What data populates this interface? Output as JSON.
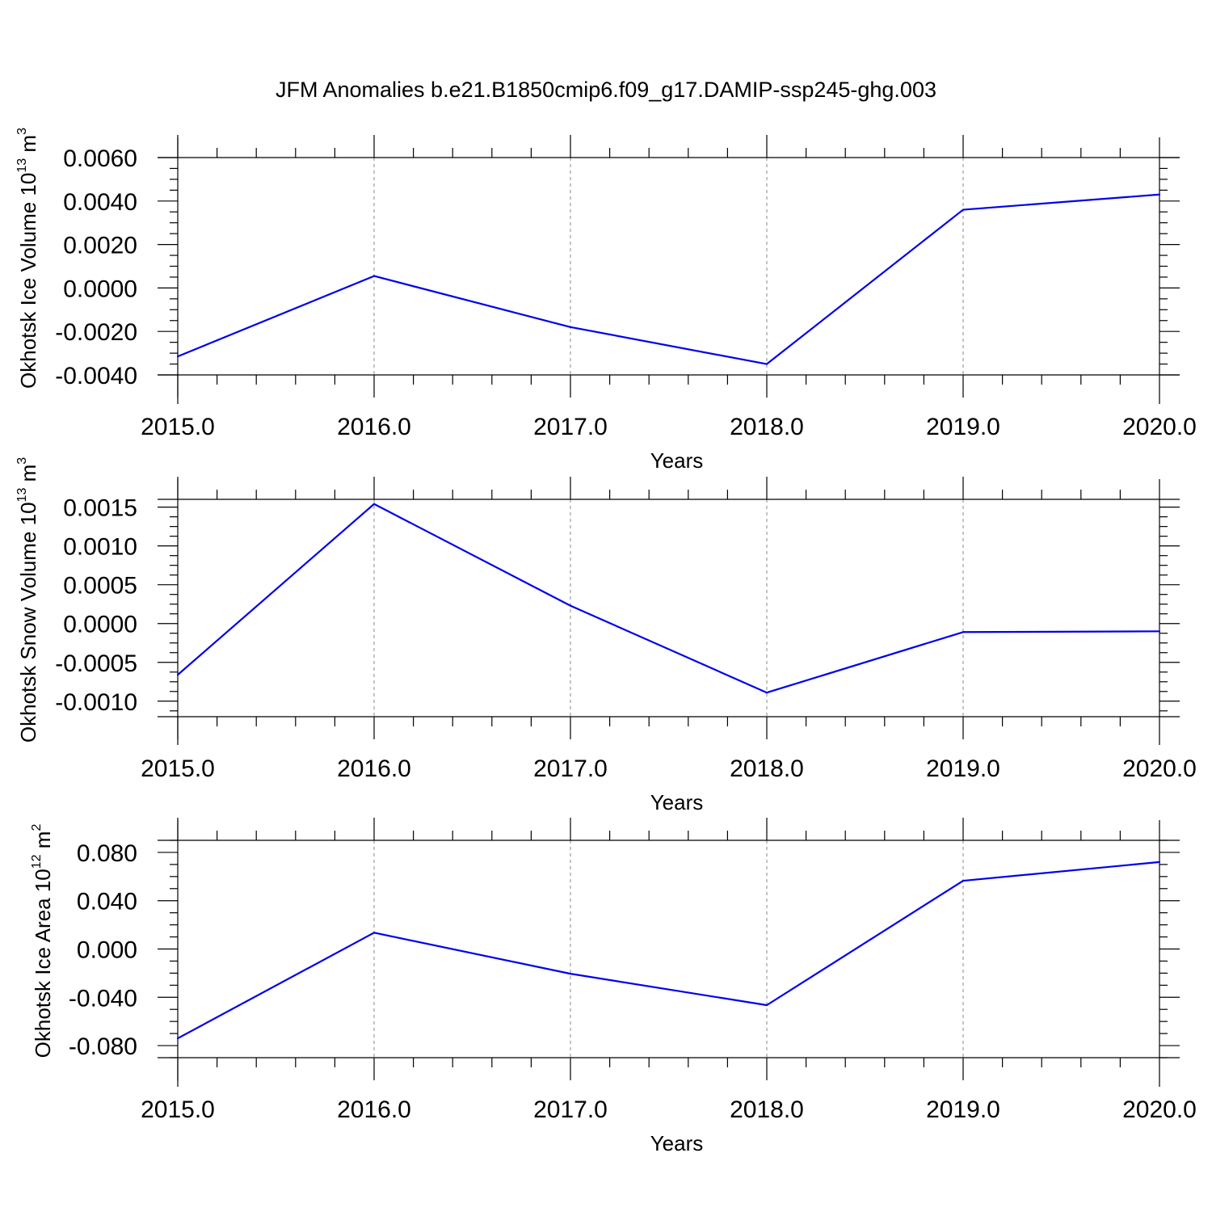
{
  "figure_title": "JFM Anomalies b.e21.B1850cmip6.f09_g17.DAMIP-ssp245-ghg.003",
  "colors": {
    "line": "#0000ee",
    "grid": "#888888",
    "axes": "#000000"
  },
  "chart_data": [
    {
      "type": "line",
      "title": "",
      "xlabel": "Years",
      "ylabel": "Okhotsk Ice Volume",
      "ylabel_unit_base": "10",
      "ylabel_unit_exp": "13",
      "ylabel_unit_tail": " m",
      "ylabel_unit_tail_exp": "3",
      "x": [
        2015,
        2016,
        2017,
        2018,
        2019,
        2020
      ],
      "values": [
        -0.00315,
        0.00055,
        -0.0018,
        -0.0035,
        0.0036,
        0.0043
      ],
      "xlim": [
        2015,
        2020
      ],
      "ylim": [
        -0.004,
        0.006
      ],
      "xticks": [
        2015,
        2016,
        2017,
        2018,
        2019,
        2020
      ],
      "xtick_labels": [
        "2015.0",
        "2016.0",
        "2017.0",
        "2018.0",
        "2019.0",
        "2020.0"
      ],
      "yticks": [
        -0.004,
        -0.002,
        0.0,
        0.002,
        0.004,
        0.006
      ],
      "ytick_labels": [
        "-0.0040",
        "-0.0020",
        "0.0000",
        "0.0020",
        "0.0040",
        "0.0060"
      ],
      "grid": "vertical dashed at major x ticks"
    },
    {
      "type": "line",
      "title": "",
      "xlabel": "Years",
      "ylabel": "Okhotsk Snow Volume",
      "ylabel_unit_base": "10",
      "ylabel_unit_exp": "13",
      "ylabel_unit_tail": " m",
      "ylabel_unit_tail_exp": "3",
      "x": [
        2015,
        2016,
        2017,
        2018,
        2019,
        2020
      ],
      "values": [
        -0.00066,
        0.00154,
        0.00023,
        -0.00089,
        -0.00011,
        -0.0001
      ],
      "xlim": [
        2015,
        2020
      ],
      "ylim": [
        -0.0012,
        0.0016
      ],
      "xticks": [
        2015,
        2016,
        2017,
        2018,
        2019,
        2020
      ],
      "xtick_labels": [
        "2015.0",
        "2016.0",
        "2017.0",
        "2018.0",
        "2019.0",
        "2020.0"
      ],
      "yticks": [
        -0.001,
        -0.0005,
        0.0,
        0.0005,
        0.001,
        0.0015
      ],
      "ytick_labels": [
        "-0.0010",
        "-0.0005",
        "0.0000",
        "0.0005",
        "0.0010",
        "0.0015"
      ],
      "grid": "vertical dashed at major x ticks"
    },
    {
      "type": "line",
      "title": "",
      "xlabel": "Years",
      "ylabel": "Okhotsk Ice Area",
      "ylabel_unit_base": "10",
      "ylabel_unit_exp": "12",
      "ylabel_unit_tail": " m",
      "ylabel_unit_tail_exp": "2",
      "x": [
        2015,
        2016,
        2017,
        2018,
        2019,
        2020
      ],
      "values": [
        -0.074,
        0.0135,
        -0.0205,
        -0.0465,
        0.0565,
        0.072
      ],
      "xlim": [
        2015,
        2020
      ],
      "ylim": [
        -0.09,
        0.09
      ],
      "xticks": [
        2015,
        2016,
        2017,
        2018,
        2019,
        2020
      ],
      "xtick_labels": [
        "2015.0",
        "2016.0",
        "2017.0",
        "2018.0",
        "2019.0",
        "2020.0"
      ],
      "yticks": [
        -0.08,
        -0.04,
        0.0,
        0.04,
        0.08
      ],
      "ytick_labels": [
        "-0.080",
        "-0.040",
        "0.000",
        "0.040",
        "0.080"
      ],
      "grid": "vertical dashed at major x ticks"
    }
  ]
}
